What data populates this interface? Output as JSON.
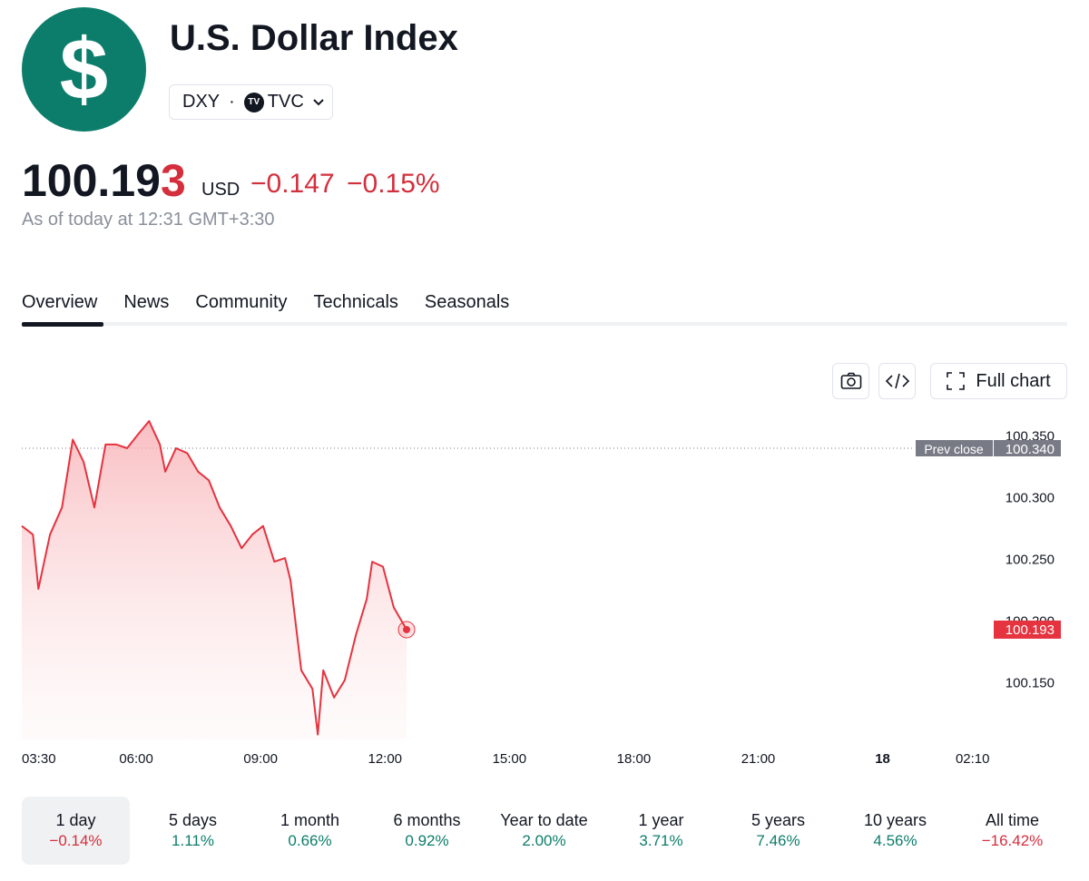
{
  "header": {
    "logo": "$",
    "title": "U.S. Dollar Index",
    "symbol": "DXY",
    "exchange": "TVC",
    "price": "100.193",
    "currency": "USD",
    "change": "−0.147",
    "change_percent": "−0.15%",
    "as_of": "As of today at 12:31 GMT+3:30"
  },
  "tabs": [
    "Overview",
    "News",
    "Community",
    "Technicals",
    "Seasonals"
  ],
  "toolbar": {
    "full_chart": "Full chart"
  },
  "chart_data": {
    "type": "line",
    "color": "#e5333f",
    "x": [
      3.24,
      3.51,
      3.64,
      3.92,
      4.21,
      4.47,
      4.73,
      4.99,
      5.26,
      5.52,
      5.78,
      6.04,
      6.31,
      6.57,
      6.7,
      6.96,
      7.23,
      7.49,
      7.75,
      8.01,
      8.28,
      8.54,
      8.8,
      9.06,
      9.33,
      9.59,
      9.72,
      9.98,
      10.25,
      10.38,
      10.51,
      10.77,
      11.03,
      11.3,
      11.56,
      11.69,
      11.95,
      12.21,
      12.52
    ],
    "values": [
      100.277,
      100.27,
      100.226,
      100.27,
      100.292,
      100.347,
      100.329,
      100.292,
      100.343,
      100.343,
      100.34,
      100.351,
      100.362,
      100.343,
      100.321,
      100.34,
      100.336,
      100.321,
      100.314,
      100.292,
      100.277,
      100.259,
      100.27,
      100.277,
      100.248,
      100.251,
      100.233,
      100.16,
      100.145,
      100.108,
      100.16,
      100.138,
      100.152,
      100.189,
      100.218,
      100.248,
      100.244,
      100.211,
      100.193
    ],
    "xlim": [
      3.24,
      26.57
    ],
    "ylim": [
      100.104,
      100.365
    ],
    "xticks": [
      {
        "value": 3.5,
        "label": "03:30"
      },
      {
        "value": 6,
        "label": "06:00"
      },
      {
        "value": 9,
        "label": "09:00"
      },
      {
        "value": 12,
        "label": "12:00"
      },
      {
        "value": 15,
        "label": "15:00"
      },
      {
        "value": 18,
        "label": "18:00"
      },
      {
        "value": 21,
        "label": "21:00"
      },
      {
        "value": 24,
        "label": "18"
      },
      {
        "value": 26.17,
        "label": "02:10"
      }
    ],
    "yticks": [
      {
        "value": 100.35,
        "label": "100.350"
      },
      {
        "value": 100.3,
        "label": "100.300"
      },
      {
        "value": 100.25,
        "label": "100.250"
      },
      {
        "value": 100.2,
        "label": "100.200"
      },
      {
        "value": 100.15,
        "label": "100.150"
      }
    ],
    "prev_close": {
      "name": "Prev close",
      "value": 100.34,
      "label": "100.340"
    },
    "last_price": {
      "value": 100.193,
      "label": "100.193"
    }
  },
  "periods": [
    {
      "label": "1 day",
      "change": "−0.14%"
    },
    {
      "label": "5 days",
      "change": "1.11%"
    },
    {
      "label": "1 month",
      "change": "0.66%"
    },
    {
      "label": "6 months",
      "change": "0.92%"
    },
    {
      "label": "Year to date",
      "change": "2.00%"
    },
    {
      "label": "1 year",
      "change": "3.71%"
    },
    {
      "label": "5 years",
      "change": "7.46%"
    },
    {
      "label": "10 years",
      "change": "4.56%"
    },
    {
      "label": "All time",
      "change": "−16.42%"
    }
  ]
}
